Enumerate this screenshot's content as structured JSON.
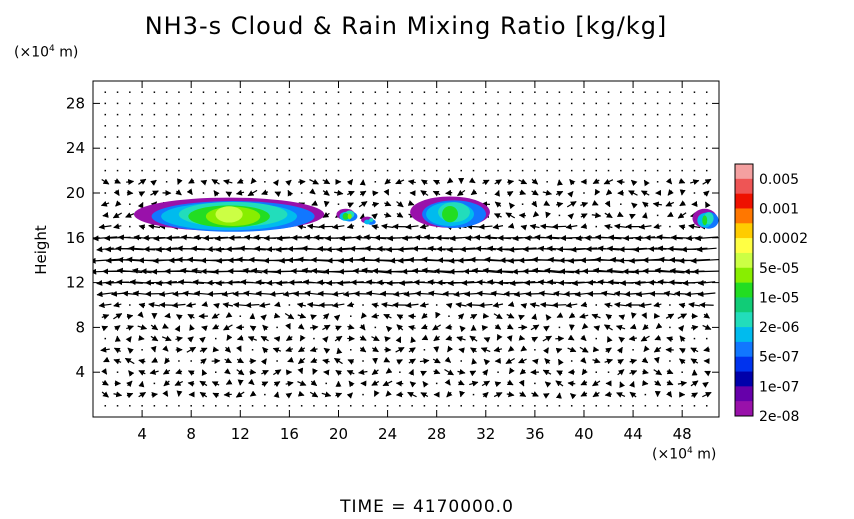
{
  "title": "NH3-s Cloud & Rain Mixing Ratio [kg/kg]",
  "y_unit": {
    "prefix": "(×10",
    "exp": "4",
    "suffix": " m)"
  },
  "x_unit": {
    "prefix": "(×10",
    "exp": "4",
    "suffix": " m)"
  },
  "time_label": "TIME = 4170000.0",
  "chart_data": {
    "type": "heatmap",
    "title": "NH3-s Cloud & Rain Mixing Ratio [kg/kg]",
    "xlabel": "",
    "ylabel": "Height",
    "xlim": [
      0,
      51
    ],
    "ylim": [
      0,
      30
    ],
    "xticks": [
      4,
      8,
      12,
      16,
      20,
      24,
      28,
      32,
      36,
      40,
      44,
      48
    ],
    "yticks": [
      4,
      8,
      12,
      16,
      20,
      24,
      28
    ],
    "grid": false,
    "overlay": "wind vector field",
    "colorbar": {
      "placement": "right",
      "levels": [
        "0.005",
        "0.001",
        "0.0002",
        "5e-05",
        "1e-05",
        "2e-06",
        "5e-07",
        "1e-07",
        "2e-08"
      ],
      "colors": [
        "#f4a0a0",
        "#ee5555",
        "#ee1100",
        "#ff7700",
        "#ffcc00",
        "#ffff44",
        "#ccff44",
        "#88ee00",
        "#22dd22",
        "#11cc77",
        "#22ddbb",
        "#00bbee",
        "#1177ff",
        "#0033ee",
        "#0000aa",
        "#6600aa",
        "#9911aa"
      ]
    },
    "cloud_regions": [
      {
        "x": [
          3.5,
          19
        ],
        "y": [
          16.5,
          19.5
        ],
        "peak": "0.0002"
      },
      {
        "x": [
          20,
          21.5
        ],
        "y": [
          17.5,
          18.5
        ],
        "peak": "5e-05"
      },
      {
        "x": [
          22,
          23
        ],
        "y": [
          17.2,
          17.8
        ],
        "peak": "2e-06"
      },
      {
        "x": [
          26,
          32.5
        ],
        "y": [
          16.8,
          19.6
        ],
        "peak": "1e-05"
      },
      {
        "x": [
          49,
          51
        ],
        "y": [
          16.8,
          18.5
        ],
        "peak": "1e-05"
      }
    ]
  }
}
